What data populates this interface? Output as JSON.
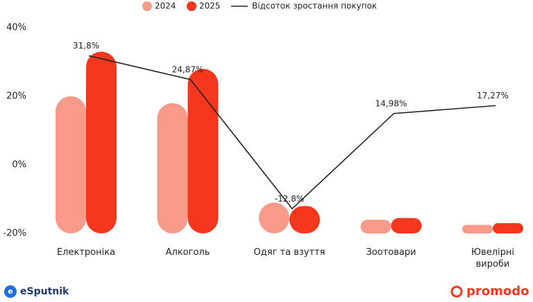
{
  "chart_data": {
    "type": "bar-line",
    "categories": [
      "Електроніка",
      "Алкоголь",
      "Одяг та взуття",
      "Зоотовари",
      "Ювелірні\nвироби"
    ],
    "series": [
      {
        "name": "2024",
        "color": "#f89a8a",
        "values": [
          20,
          18,
          -11,
          -16,
          -17.5
        ]
      },
      {
        "name": "2025",
        "color": "#f5371e",
        "values": [
          33,
          28,
          -12,
          -15.5,
          -17
        ]
      },
      {
        "name": "Відсоток зростання покупок",
        "color": "#222222",
        "type": "line",
        "values": [
          31.8,
          24.87,
          -12.8,
          14.98,
          17.27
        ],
        "value_labels": [
          "31,8%",
          "24,87%",
          "-12,8%",
          "14,98%",
          "17,27%"
        ]
      }
    ],
    "ylim": [
      -20,
      40
    ],
    "yticks": [
      {
        "value": -20,
        "label": "-20%"
      },
      {
        "value": 0,
        "label": "0%"
      },
      {
        "value": 20,
        "label": "20%"
      },
      {
        "value": 40,
        "label": "40%"
      }
    ],
    "grid": false
  },
  "footer": {
    "left_logo": "eSputnik",
    "right_logo": "promodo"
  }
}
